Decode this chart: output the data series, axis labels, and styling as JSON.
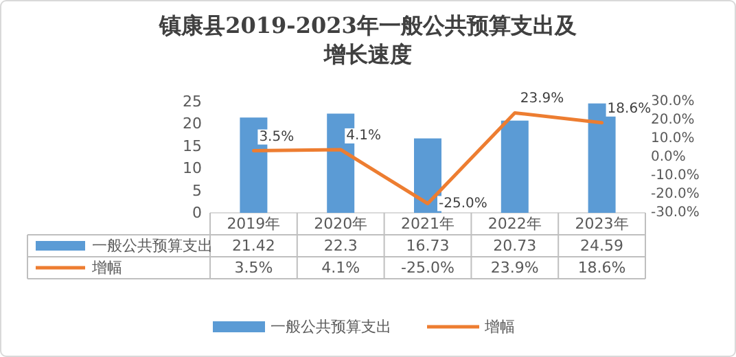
{
  "chart_data": {
    "type": "bar",
    "title": "镇康县2019-2023年一般公共预算支出及增长速度",
    "categories": [
      "2019年",
      "2020年",
      "2021年",
      "2022年",
      "2023年"
    ],
    "series": [
      {
        "name": "一般公共预算支出",
        "color": "#5b9bd5",
        "values": [
          21.42,
          22.3,
          16.73,
          20.73,
          24.59
        ]
      },
      {
        "name": "增幅",
        "type": "line",
        "axis": "y2",
        "color": "#ed7d31",
        "values": [
          3.5,
          4.1,
          -25.0,
          23.9,
          18.6
        ],
        "value_labels": [
          "3.5%",
          "4.1%",
          "-25.0%",
          "23.9%",
          "18.6%"
        ]
      }
    ],
    "ylim": [
      0,
      25
    ],
    "yticks": [
      0,
      5,
      10,
      15,
      20,
      25
    ],
    "y2lim": [
      -30,
      30
    ],
    "y2ticks": [
      {
        "value": 30,
        "label": "30.0%"
      },
      {
        "value": 20,
        "label": "20.0%"
      },
      {
        "value": 10,
        "label": "10.0%"
      },
      {
        "value": 0,
        "label": "0.0%"
      },
      {
        "value": -10,
        "label": "-10.0%"
      },
      {
        "value": -20,
        "label": "-20.0%"
      },
      {
        "value": -30,
        "label": "-30.0%"
      }
    ],
    "data_labels": true,
    "legend": "bottom",
    "marker": "none"
  }
}
